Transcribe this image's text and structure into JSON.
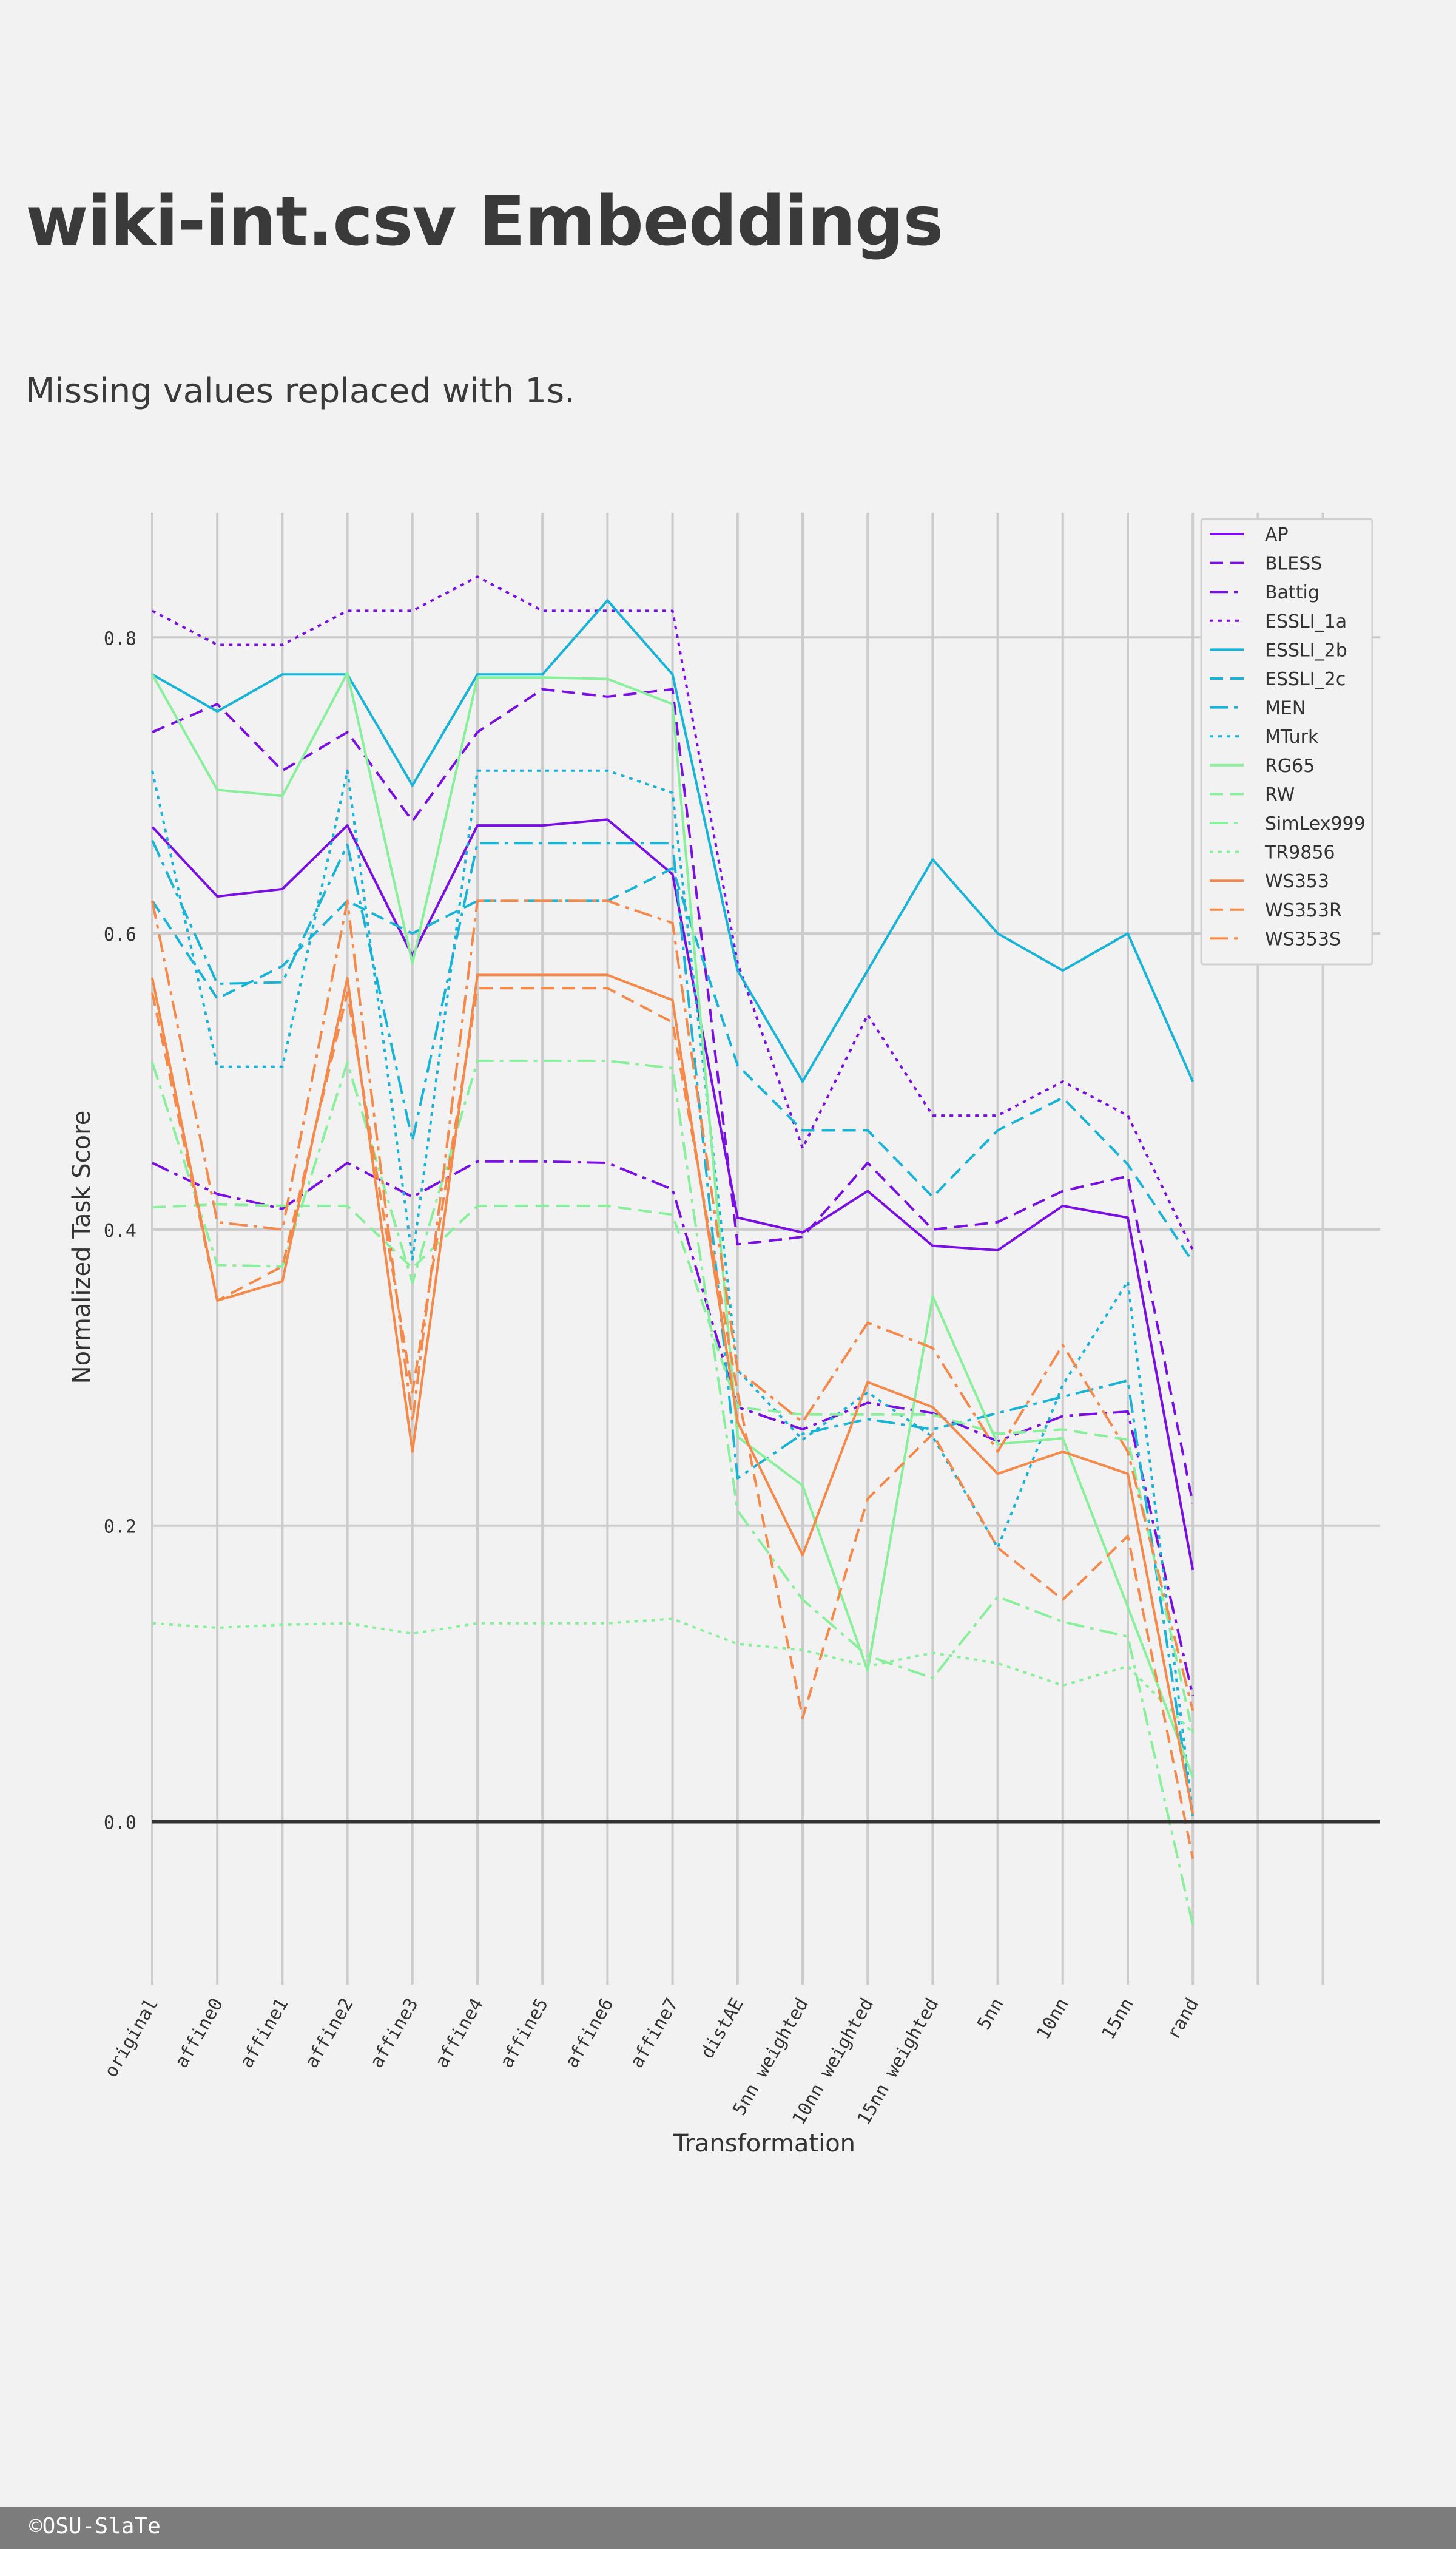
{
  "page": {
    "title": "wiki-int.csv Embeddings",
    "subtitle": "Missing values replaced with 1s.",
    "footer": "©OSU-SlaTe"
  },
  "chart_data": {
    "type": "line",
    "title": "",
    "xlabel": "Transformation",
    "ylabel": "Normalized Task Score",
    "categories": [
      "original",
      "affine0",
      "affine1",
      "affine2",
      "affine3",
      "affine4",
      "affine5",
      "affine6",
      "affine7",
      "distAE",
      "5nn weighted",
      "10nn weighted",
      "15nn weighted",
      "5nn",
      "10nn",
      "15nn",
      "rand"
    ],
    "extra_gridlines": 2,
    "ylim": [
      -0.107,
      0.885
    ],
    "yticks": [
      "0.0",
      "0.2",
      "0.4",
      "0.6",
      "0.8"
    ],
    "grid": true,
    "legend_position": "top-right",
    "series": [
      {
        "name": "AP",
        "color": "#7a0fe3",
        "dash": "solid",
        "values": [
          0.672,
          0.625,
          0.63,
          0.673,
          0.585,
          0.673,
          0.673,
          0.677,
          0.64,
          0.408,
          0.398,
          0.426,
          0.389,
          0.386,
          0.416,
          0.408,
          0.17
        ]
      },
      {
        "name": "BLESS",
        "color": "#7a0fe3",
        "dash": "dashed",
        "values": [
          0.736,
          0.755,
          0.71,
          0.736,
          0.676,
          0.736,
          0.765,
          0.76,
          0.765,
          0.39,
          0.395,
          0.445,
          0.4,
          0.405,
          0.426,
          0.436,
          0.215
        ]
      },
      {
        "name": "Battig",
        "color": "#7a0fe3",
        "dash": "dashdot",
        "values": [
          0.445,
          0.424,
          0.414,
          0.445,
          0.422,
          0.446,
          0.446,
          0.445,
          0.427,
          0.28,
          0.265,
          0.283,
          0.276,
          0.257,
          0.274,
          0.277,
          0.085
        ]
      },
      {
        "name": "ESSLI_1a",
        "color": "#7a0fe3",
        "dash": "dotted",
        "values": [
          0.818,
          0.795,
          0.795,
          0.818,
          0.818,
          0.841,
          0.818,
          0.818,
          0.818,
          0.58,
          0.455,
          0.545,
          0.477,
          0.477,
          0.5,
          0.477,
          0.386
        ]
      },
      {
        "name": "ESSLI_2b",
        "color": "#18b4d8",
        "dash": "solid",
        "values": [
          0.775,
          0.75,
          0.775,
          0.775,
          0.7,
          0.775,
          0.775,
          0.825,
          0.775,
          0.575,
          0.5,
          0.575,
          0.65,
          0.6,
          0.575,
          0.6,
          0.5
        ]
      },
      {
        "name": "ESSLI_2c",
        "color": "#18b4d8",
        "dash": "dashed",
        "values": [
          0.622,
          0.556,
          0.578,
          0.622,
          0.6,
          0.622,
          0.622,
          0.622,
          0.644,
          0.511,
          0.467,
          0.467,
          0.422,
          0.467,
          0.489,
          0.444,
          0.378
        ]
      },
      {
        "name": "MEN",
        "color": "#18b4d8",
        "dash": "dashdot",
        "values": [
          0.663,
          0.566,
          0.567,
          0.66,
          0.46,
          0.661,
          0.661,
          0.661,
          0.661,
          0.232,
          0.262,
          0.272,
          0.265,
          0.276,
          0.287,
          0.298,
          0.003
        ]
      },
      {
        "name": "MTurk",
        "color": "#18b4d8",
        "dash": "dotted",
        "values": [
          0.71,
          0.51,
          0.51,
          0.71,
          0.38,
          0.71,
          0.71,
          0.71,
          0.695,
          0.305,
          0.258,
          0.29,
          0.26,
          0.185,
          0.295,
          0.365,
          0.005
        ]
      },
      {
        "name": "RG65",
        "color": "#88f09a",
        "dash": "solid",
        "values": [
          0.775,
          0.697,
          0.693,
          0.776,
          0.58,
          0.773,
          0.773,
          0.772,
          0.755,
          0.26,
          0.227,
          0.102,
          0.355,
          0.255,
          0.259,
          0.145,
          0.03
        ]
      },
      {
        "name": "RW",
        "color": "#88f09a",
        "dash": "dashed",
        "values": [
          0.415,
          0.417,
          0.416,
          0.416,
          0.374,
          0.416,
          0.416,
          0.416,
          0.41,
          0.28,
          0.275,
          0.275,
          0.275,
          0.262,
          0.265,
          0.258,
          0.06
        ]
      },
      {
        "name": "SimLex999",
        "color": "#88f09a",
        "dash": "dashdot",
        "values": [
          0.513,
          0.376,
          0.375,
          0.513,
          0.364,
          0.514,
          0.514,
          0.514,
          0.509,
          0.21,
          0.15,
          0.112,
          0.097,
          0.152,
          0.135,
          0.125,
          -0.07
        ]
      },
      {
        "name": "TR9856",
        "color": "#88f09a",
        "dash": "dotted",
        "values": [
          0.134,
          0.131,
          0.133,
          0.134,
          0.127,
          0.134,
          0.134,
          0.134,
          0.137,
          0.12,
          0.116,
          0.105,
          0.114,
          0.107,
          0.092,
          0.105,
          0.06
        ]
      },
      {
        "name": "WS353",
        "color": "#f5894a",
        "dash": "solid",
        "values": [
          0.57,
          0.352,
          0.365,
          0.57,
          0.25,
          0.572,
          0.572,
          0.572,
          0.555,
          0.27,
          0.18,
          0.297,
          0.28,
          0.235,
          0.25,
          0.235,
          0.005
        ]
      },
      {
        "name": "WS353R",
        "color": "#f5894a",
        "dash": "dashed",
        "values": [
          0.56,
          0.352,
          0.375,
          0.56,
          0.29,
          0.563,
          0.563,
          0.563,
          0.54,
          0.29,
          0.07,
          0.218,
          0.262,
          0.185,
          0.15,
          0.193,
          -0.025
        ]
      },
      {
        "name": "WS353S",
        "color": "#f5894a",
        "dash": "dashdot",
        "values": [
          0.622,
          0.405,
          0.4,
          0.622,
          0.27,
          0.622,
          0.622,
          0.622,
          0.607,
          0.305,
          0.27,
          0.337,
          0.32,
          0.25,
          0.322,
          0.25,
          0.075
        ]
      }
    ]
  }
}
